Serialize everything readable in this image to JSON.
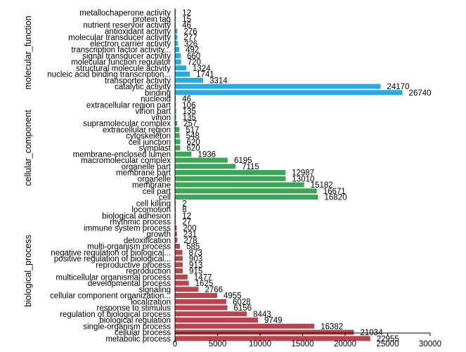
{
  "chart_data": {
    "type": "bar",
    "orientation": "horizontal",
    "title": "",
    "xlabel": "",
    "ylabel": "",
    "xlim": [
      0,
      30000
    ],
    "x_ticks": [
      0,
      5000,
      10000,
      15000,
      20000,
      25000,
      30000
    ],
    "x_tick_labels": [
      "0",
      "5000",
      "10000",
      "15000",
      "20000",
      "25000",
      "30000"
    ],
    "grid": false,
    "legend": "none",
    "groups": [
      {
        "name": "molecular_function",
        "color": "#29a9df",
        "categories": [
          "metallochaperone activity",
          "protein tag",
          "nutrient reservoir activity",
          "antioxidant activity",
          "molecular transducer activity",
          "electron carrier activity",
          "transcription factor activity...",
          "signal transducer activity",
          "molecular function regulator",
          "structural molecule activity",
          "nucleic acid binding transcription...",
          "transporter activity",
          "catalytic activity",
          "binding"
        ],
        "values": [
          12,
          15,
          46,
          276,
          277,
          326,
          492,
          660,
          720,
          1324,
          1741,
          3314,
          24170,
          26740
        ]
      },
      {
        "name": "cellular_component",
        "color": "#3aa757",
        "categories": [
          "nucleoid",
          "extracellular region part",
          "virion part",
          "virion",
          "supramolecular complex",
          "extracellular region",
          "cytoskeleton",
          "cell junction",
          "symplast",
          "membrane-enclosed lumen",
          "macromolecular complex",
          "organelle part",
          "membrane part",
          "organelle",
          "membrane",
          "cell part",
          "cell"
        ],
        "values": [
          46,
          106,
          135,
          135,
          257,
          517,
          548,
          620,
          620,
          1936,
          6195,
          7115,
          12987,
          13010,
          15182,
          16671,
          16820
        ]
      },
      {
        "name": "biological_process",
        "color": "#b8454e",
        "categories": [
          "cell killing",
          "locomotion",
          "biological adhesion",
          "rhythmic process",
          "immune system process",
          "growth",
          "detoxification",
          "multi-organism process",
          "negative regulation of biological...",
          "positive regulation of biological...",
          "reproductive process",
          "reproduction",
          "multicellular organismal process",
          "developmental process",
          "signaling",
          "cellular component organization...",
          "localization",
          "response to stimulus",
          "regulation of biological process",
          "biological regulation",
          "single-organism process",
          "cellular process",
          "metabolic process"
        ],
        "values": [
          2,
          8,
          12,
          27,
          200,
          231,
          278,
          585,
          873,
          903,
          913,
          915,
          1477,
          1625,
          2766,
          4955,
          6028,
          6156,
          8443,
          9749,
          16382,
          21034,
          22955
        ]
      }
    ]
  }
}
